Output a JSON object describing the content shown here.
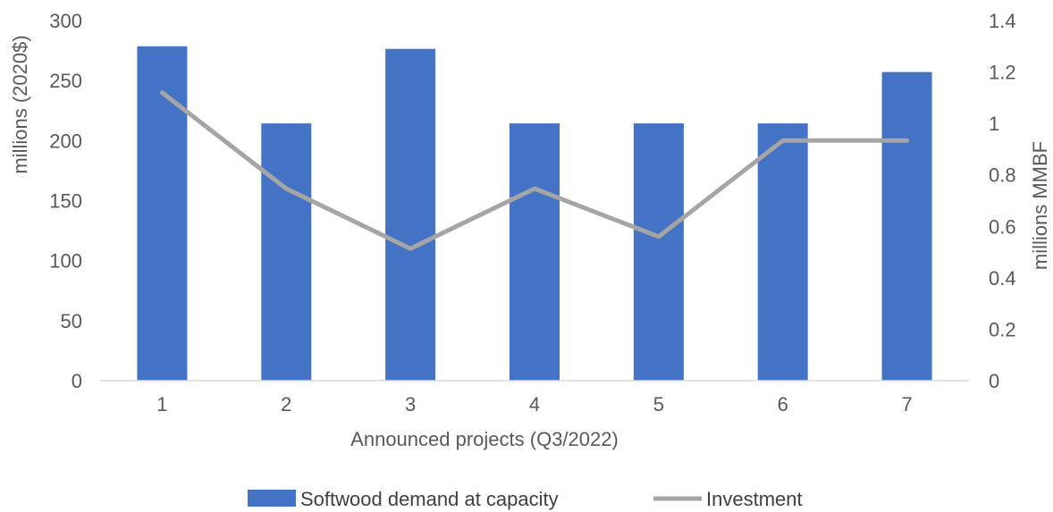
{
  "chart_data": {
    "type": "bar",
    "categories": [
      "1",
      "2",
      "3",
      "4",
      "5",
      "6",
      "7"
    ],
    "series": [
      {
        "name": "Softwood demand at capacity",
        "type": "bar",
        "axis": "right",
        "color": "#4472C4",
        "values": [
          1.3,
          1.0,
          1.29,
          1.0,
          1.0,
          1.0,
          1.2
        ]
      },
      {
        "name": "Investment",
        "type": "line",
        "axis": "left",
        "color": "#A5A5A5",
        "values": [
          240,
          160,
          110,
          160,
          120,
          200,
          200
        ]
      }
    ],
    "xlabel": "Announced projects (Q3/2022)",
    "ylabel": "millions (2020$)",
    "y2label": "millions MMBF",
    "ylim": [
      0,
      300
    ],
    "y2lim": [
      0,
      1.4
    ],
    "yticks": [
      "0",
      "50",
      "100",
      "150",
      "200",
      "250",
      "300"
    ],
    "y2ticks": [
      "0",
      "0.2",
      "0.4",
      "0.6",
      "0.8",
      "1",
      "1.2",
      "1.4"
    ],
    "grid": false,
    "legend_position": "bottom"
  }
}
